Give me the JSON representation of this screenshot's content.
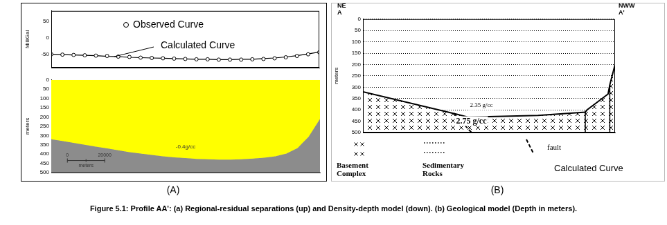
{
  "caption": {
    "panels": [
      "(A)",
      "(B)"
    ],
    "text": "Figure 5.1: Profile AA': (a) Regional-residual separations (up) and Density-depth model (down). (b) Geological model (Depth in meters)."
  },
  "chart_data": [
    {
      "type": "line",
      "y_label": "MilliGal",
      "x": [
        0,
        6000,
        12000,
        18000,
        24000,
        30000,
        36000,
        42000,
        48000,
        54000,
        60000,
        66000,
        72000,
        78000,
        84000,
        90000,
        96000,
        102000,
        108000,
        114000,
        120000,
        126000,
        132000,
        138000,
        144000
      ],
      "series": [
        {
          "name": "Observed Curve",
          "color": "#000000",
          "marker": "circle",
          "values": [
            -50,
            -51,
            -52,
            -53,
            -54,
            -55,
            -57,
            -58,
            -60,
            -61,
            -62,
            -63,
            -64,
            -65,
            -65,
            -66,
            -66,
            -66,
            -65,
            -64,
            -62,
            -59,
            -55,
            -50,
            -44
          ]
        },
        {
          "name": "Calculated Curve",
          "color": "#000000",
          "line_style": "solid",
          "values": [
            -50,
            -51,
            -52,
            -53,
            -54,
            -56,
            -57,
            -59,
            -60,
            -61,
            -62,
            -63,
            -64,
            -65,
            -65,
            -66,
            -66,
            -65,
            -65,
            -63,
            -61,
            -58,
            -54,
            -49,
            -43
          ]
        }
      ],
      "xlim": [
        0,
        144000
      ],
      "ylim": [
        -90,
        80
      ],
      "yticks": [
        -50,
        0,
        50
      ],
      "tick_labels": "y"
    },
    {
      "type": "area",
      "y_label": "meters",
      "x": [
        0,
        6000,
        12000,
        18000,
        24000,
        30000,
        36000,
        42000,
        48000,
        54000,
        60000,
        66000,
        72000,
        78000,
        84000,
        90000,
        96000,
        102000,
        108000,
        114000,
        120000,
        126000,
        132000,
        138000,
        144000
      ],
      "series": [
        {
          "values": [
            320,
            330,
            340,
            350,
            360,
            370,
            380,
            390,
            398,
            405,
            412,
            418,
            422,
            426,
            428,
            430,
            430,
            428,
            425,
            420,
            412,
            398,
            368,
            305,
            210
          ]
        }
      ],
      "colors": [
        "#ffff00",
        "#8c8c8c"
      ],
      "xlim": [
        0,
        144000
      ],
      "ylim": [
        500,
        0
      ],
      "yticks": [
        0,
        50,
        100,
        150,
        200,
        250,
        300,
        350,
        400,
        450,
        500
      ],
      "tick_labels": "y",
      "density_label": "-0.4g/cc",
      "scale_bar": {
        "values": [
          0,
          20000
        ],
        "unit": "meters"
      }
    },
    {
      "type": "area",
      "y_label": "meters",
      "x": [
        0,
        54000,
        60000,
        100000,
        127000,
        128000,
        140000,
        141000,
        144000
      ],
      "series": [
        {
          "color": "#000000",
          "marker": "x",
          "values": [
            320,
            420,
            432,
            425,
            410,
            400,
            330,
            290,
            200
          ]
        }
      ],
      "xlim": [
        0,
        144000
      ],
      "ylim": [
        500,
        0
      ],
      "yticks": [
        0,
        50,
        100,
        150,
        200,
        250,
        300,
        350,
        400,
        450,
        500
      ],
      "tick_labels": "y",
      "grid": true,
      "ends": {
        "left": [
          "NE",
          "A"
        ],
        "right": [
          "NWW",
          "A'"
        ]
      },
      "density_labels": [
        "2.35 g/cc",
        "2.75 g/cc"
      ],
      "faults": [
        {
          "x": [
            52000,
            62000
          ],
          "y": [
            415,
            500
          ],
          "line_style": "dashed"
        },
        {
          "x": [
            127000,
            127000
          ],
          "y": [
            405,
            500
          ],
          "line_style": "solid"
        },
        {
          "x": [
            141000,
            141000
          ],
          "y": [
            290,
            500
          ],
          "line_style": "solid"
        }
      ],
      "key": [
        {
          "label": "Basement Complex",
          "marker": "x"
        },
        {
          "label": "Sedimentary Rocks",
          "marker": "dots"
        },
        {
          "label": "fault",
          "line_style": "dashed"
        }
      ],
      "note": "Calculated Curve"
    }
  ]
}
